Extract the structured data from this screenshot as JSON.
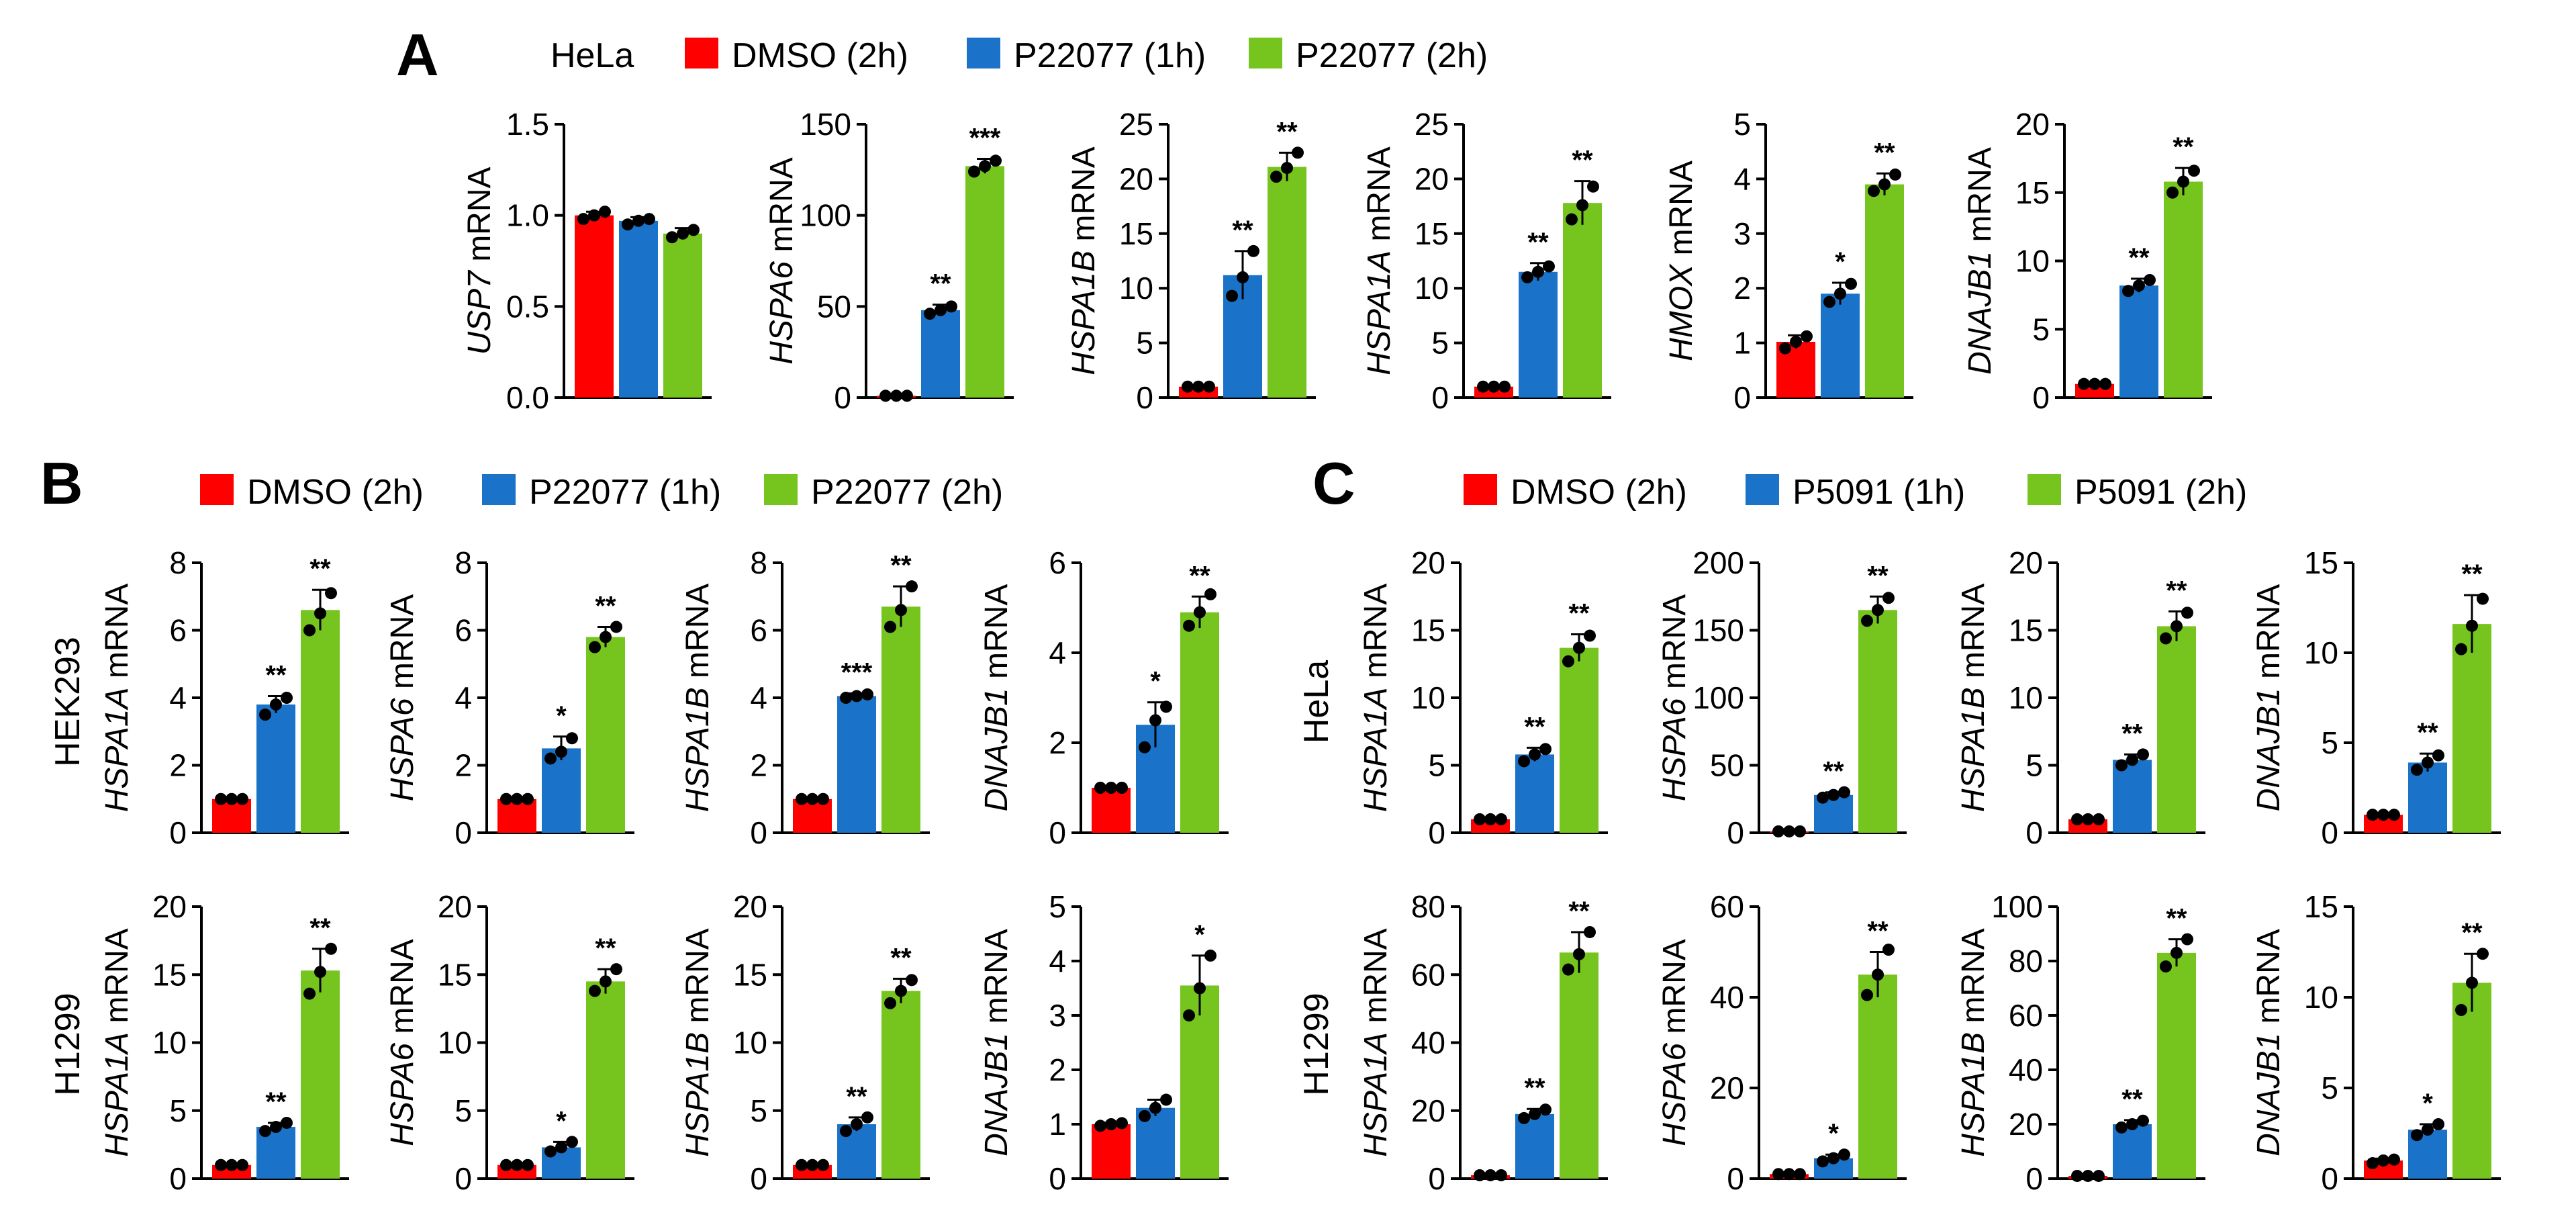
{
  "figure": {
    "panels": [
      {
        "letter": "A",
        "cell_label": "HeLa",
        "legend": [
          "DMSO (2h)",
          "P22077 (1h)",
          "P22077 (2h)"
        ]
      },
      {
        "letter": "B",
        "cell_label": "",
        "legend": [
          "DMSO (2h)",
          "P22077 (1h)",
          "P22077 (2h)"
        ],
        "row_labels": [
          "HEK293",
          "H1299"
        ]
      },
      {
        "letter": "C",
        "cell_label": "",
        "legend": [
          "DMSO (2h)",
          "P5091 (1h)",
          "P5091 (2h)"
        ],
        "row_labels": [
          "HeLa",
          "H1299"
        ]
      }
    ],
    "colors": {
      "dmso": "#ff0000",
      "drug_1h": "#1a73c8",
      "drug_2h": "#76c41e"
    },
    "units_suffix": " mRNA"
  },
  "chart_data": [
    {
      "type": "bar",
      "panel": "A",
      "gene": "USP7",
      "ylabel": "USP7 mRNA",
      "ylim": [
        0,
        1.5
      ],
      "yticks": [
        "0.0",
        "0.5",
        "1.0",
        "1.5"
      ],
      "categories": [
        "DMSO (2h)",
        "P22077 (1h)",
        "P22077 (2h)"
      ],
      "values": [
        1.0,
        0.97,
        0.9
      ],
      "errors": [
        0.02,
        0.02,
        0.03
      ],
      "points": [
        [
          0.98,
          1.0,
          1.02
        ],
        [
          0.95,
          0.97,
          0.98
        ],
        [
          0.88,
          0.9,
          0.92
        ]
      ],
      "significance": [
        "",
        "",
        ""
      ]
    },
    {
      "type": "bar",
      "panel": "A",
      "gene": "HSPA6",
      "ylabel": "HSPA6 mRNA",
      "ylim": [
        0,
        150
      ],
      "yticks": [
        "0",
        "50",
        "100",
        "150"
      ],
      "categories": [
        "DMSO (2h)",
        "P22077 (1h)",
        "P22077 (2h)"
      ],
      "values": [
        1,
        48,
        127
      ],
      "errors": [
        0.3,
        3,
        4
      ],
      "points": [
        [
          1,
          1,
          1
        ],
        [
          46,
          48,
          50
        ],
        [
          124,
          127,
          130
        ]
      ],
      "significance": [
        "",
        "**",
        "***"
      ]
    },
    {
      "type": "bar",
      "panel": "A",
      "gene": "HSPA1B",
      "ylabel": "HSPA1B mRNA",
      "ylim": [
        0,
        25
      ],
      "yticks": [
        "0",
        "5",
        "10",
        "15",
        "20",
        "25"
      ],
      "categories": [
        "DMSO (2h)",
        "P22077 (1h)",
        "P22077 (2h)"
      ],
      "values": [
        1,
        11.2,
        21.1
      ],
      "errors": [
        0.1,
        2.2,
        1.3
      ],
      "points": [
        [
          1,
          1,
          1
        ],
        [
          9.3,
          11,
          13.4
        ],
        [
          20.2,
          21,
          22.4
        ]
      ],
      "significance": [
        "",
        "**",
        "**"
      ]
    },
    {
      "type": "bar",
      "panel": "A",
      "gene": "HSPA1A",
      "ylabel": "HSPA1A mRNA",
      "ylim": [
        0,
        25
      ],
      "yticks": [
        "0",
        "5",
        "10",
        "15",
        "20",
        "25"
      ],
      "categories": [
        "DMSO (2h)",
        "P22077 (1h)",
        "P22077 (2h)"
      ],
      "values": [
        1,
        11.5,
        17.8
      ],
      "errors": [
        0.1,
        0.8,
        2
      ],
      "points": [
        [
          1,
          1,
          1
        ],
        [
          11,
          11.5,
          12
        ],
        [
          16.3,
          17.6,
          19.3
        ]
      ],
      "significance": [
        "",
        "**",
        "**"
      ]
    },
    {
      "type": "bar",
      "panel": "A",
      "gene": "HMOX",
      "ylabel": "HMOX mRNA",
      "ylim": [
        0,
        5
      ],
      "yticks": [
        "0",
        "1",
        "2",
        "3",
        "4",
        "5"
      ],
      "categories": [
        "DMSO (2h)",
        "P22077 (1h)",
        "P22077 (2h)"
      ],
      "values": [
        1.02,
        1.9,
        3.9
      ],
      "errors": [
        0.12,
        0.2,
        0.2
      ],
      "points": [
        [
          0.9,
          1.02,
          1.12
        ],
        [
          1.75,
          1.9,
          2.08
        ],
        [
          3.78,
          3.9,
          4.08
        ]
      ],
      "significance": [
        "",
        "*",
        "**"
      ]
    },
    {
      "type": "bar",
      "panel": "A",
      "gene": "DNAJB1",
      "ylabel": "DNAJB1 mRNA",
      "ylim": [
        0,
        20
      ],
      "yticks": [
        "0",
        "5",
        "10",
        "15",
        "20"
      ],
      "categories": [
        "DMSO (2h)",
        "P22077 (1h)",
        "P22077 (2h)"
      ],
      "values": [
        1,
        8.2,
        15.8
      ],
      "errors": [
        0.1,
        0.5,
        1
      ],
      "points": [
        [
          1,
          1,
          1
        ],
        [
          7.8,
          8.2,
          8.6
        ],
        [
          15,
          15.8,
          16.6
        ]
      ],
      "significance": [
        "",
        "**",
        "**"
      ]
    },
    {
      "type": "bar",
      "panel": "B",
      "row": "HEK293",
      "gene": "HSPA1A",
      "ylabel": "HSPA1A mRNA",
      "ylim": [
        0,
        8
      ],
      "yticks": [
        "0",
        "2",
        "4",
        "6",
        "8"
      ],
      "categories": [
        "DMSO (2h)",
        "P22077 (1h)",
        "P22077 (2h)"
      ],
      "values": [
        1,
        3.8,
        6.6
      ],
      "errors": [
        0.05,
        0.25,
        0.6
      ],
      "points": [
        [
          1,
          1,
          1
        ],
        [
          3.5,
          3.8,
          4.0
        ],
        [
          6.0,
          6.5,
          7.1
        ]
      ],
      "significance": [
        "",
        "**",
        "**"
      ]
    },
    {
      "type": "bar",
      "panel": "B",
      "row": "HEK293",
      "gene": "HSPA6",
      "ylabel": "HSPA6 mRNA",
      "ylim": [
        0,
        8
      ],
      "yticks": [
        "0",
        "2",
        "4",
        "6",
        "8"
      ],
      "categories": [
        "DMSO (2h)",
        "P22077 (1h)",
        "P22077 (2h)"
      ],
      "values": [
        1,
        2.5,
        5.8
      ],
      "errors": [
        0.05,
        0.35,
        0.3
      ],
      "points": [
        [
          1,
          1,
          1
        ],
        [
          2.2,
          2.4,
          2.8
        ],
        [
          5.5,
          5.8,
          6.1
        ]
      ],
      "significance": [
        "",
        "*",
        "**"
      ]
    },
    {
      "type": "bar",
      "panel": "B",
      "row": "HEK293",
      "gene": "HSPA1B",
      "ylabel": "HSPA1B mRNA",
      "ylim": [
        0,
        8
      ],
      "yticks": [
        "0",
        "2",
        "4",
        "6",
        "8"
      ],
      "categories": [
        "DMSO (2h)",
        "P22077 (1h)",
        "P22077 (2h)"
      ],
      "values": [
        1,
        4.05,
        6.7
      ],
      "errors": [
        0.05,
        0.08,
        0.6
      ],
      "points": [
        [
          1,
          1,
          1
        ],
        [
          4.0,
          4.05,
          4.1
        ],
        [
          6.1,
          6.6,
          7.3
        ]
      ],
      "significance": [
        "",
        "***",
        "**"
      ]
    },
    {
      "type": "bar",
      "panel": "B",
      "row": "HEK293",
      "gene": "DNAJB1",
      "ylabel": "DNAJB1 mRNA",
      "ylim": [
        0,
        6
      ],
      "yticks": [
        "0",
        "2",
        "4",
        "6"
      ],
      "categories": [
        "DMSO (2h)",
        "P22077 (1h)",
        "P22077 (2h)"
      ],
      "values": [
        1,
        2.4,
        4.9
      ],
      "errors": [
        0.04,
        0.5,
        0.35
      ],
      "points": [
        [
          1,
          1,
          1
        ],
        [
          1.9,
          2.5,
          2.8
        ],
        [
          4.6,
          4.9,
          5.3
        ]
      ],
      "significance": [
        "",
        "*",
        "**"
      ]
    },
    {
      "type": "bar",
      "panel": "B",
      "row": "H1299",
      "gene": "HSPA1A",
      "ylabel": "HSPA1A mRNA",
      "ylim": [
        0,
        20
      ],
      "yticks": [
        "0",
        "5",
        "10",
        "15",
        "20"
      ],
      "categories": [
        "DMSO (2h)",
        "P22077 (1h)",
        "P22077 (2h)"
      ],
      "values": [
        1,
        3.8,
        15.3
      ],
      "errors": [
        0.05,
        0.3,
        1.6
      ],
      "points": [
        [
          1,
          1,
          1
        ],
        [
          3.5,
          3.8,
          4.1
        ],
        [
          13.6,
          15.2,
          16.9
        ]
      ],
      "significance": [
        "",
        "**",
        "**"
      ]
    },
    {
      "type": "bar",
      "panel": "B",
      "row": "H1299",
      "gene": "HSPA6",
      "ylabel": "HSPA6 mRNA",
      "ylim": [
        0,
        20
      ],
      "yticks": [
        "0",
        "5",
        "10",
        "15",
        "20"
      ],
      "categories": [
        "DMSO (2h)",
        "P22077 (1h)",
        "P22077 (2h)"
      ],
      "values": [
        1,
        2.3,
        14.5
      ],
      "errors": [
        0.05,
        0.4,
        0.9
      ],
      "points": [
        [
          1,
          1,
          1
        ],
        [
          2.0,
          2.3,
          2.7
        ],
        [
          13.8,
          14.5,
          15.4
        ]
      ],
      "significance": [
        "",
        "*",
        "**"
      ]
    },
    {
      "type": "bar",
      "panel": "B",
      "row": "H1299",
      "gene": "HSPA1B",
      "ylabel": "HSPA1B mRNA",
      "ylim": [
        0,
        20
      ],
      "yticks": [
        "0",
        "5",
        "10",
        "15",
        "20"
      ],
      "categories": [
        "DMSO (2h)",
        "P22077 (1h)",
        "P22077 (2h)"
      ],
      "values": [
        1,
        4,
        13.8
      ],
      "errors": [
        0.05,
        0.5,
        0.9
      ],
      "points": [
        [
          1,
          1,
          1
        ],
        [
          3.5,
          4.0,
          4.5
        ],
        [
          12.9,
          13.8,
          14.6
        ]
      ],
      "significance": [
        "",
        "**",
        "**"
      ]
    },
    {
      "type": "bar",
      "panel": "B",
      "row": "H1299",
      "gene": "DNAJB1",
      "ylabel": "DNAJB1 mRNA",
      "ylim": [
        0,
        5
      ],
      "yticks": [
        "0",
        "1",
        "2",
        "3",
        "4",
        "5"
      ],
      "categories": [
        "DMSO (2h)",
        "P22077 (1h)",
        "P22077 (2h)"
      ],
      "values": [
        1,
        1.3,
        3.55
      ],
      "errors": [
        0.03,
        0.15,
        0.55
      ],
      "points": [
        [
          0.97,
          1,
          1.02
        ],
        [
          1.15,
          1.3,
          1.45
        ],
        [
          3.0,
          3.5,
          4.1
        ]
      ],
      "significance": [
        "",
        "",
        "*"
      ]
    },
    {
      "type": "bar",
      "panel": "C",
      "row": "HeLa",
      "gene": "HSPA1A",
      "ylabel": "HSPA1A mRNA",
      "ylim": [
        0,
        20
      ],
      "yticks": [
        "0",
        "5",
        "10",
        "15",
        "20"
      ],
      "categories": [
        "DMSO (2h)",
        "P5091 (1h)",
        "P5091 (2h)"
      ],
      "values": [
        1,
        5.8,
        13.7
      ],
      "errors": [
        0.1,
        0.5,
        1
      ],
      "points": [
        [
          1,
          1,
          1
        ],
        [
          5.3,
          5.8,
          6.2
        ],
        [
          12.7,
          13.7,
          14.6
        ]
      ],
      "significance": [
        "",
        "**",
        "**"
      ]
    },
    {
      "type": "bar",
      "panel": "C",
      "row": "HeLa",
      "gene": "HSPA6",
      "ylabel": "HSPA6 mRNA",
      "ylim": [
        0,
        200
      ],
      "yticks": [
        "0",
        "50",
        "100",
        "150",
        "200"
      ],
      "categories": [
        "DMSO (2h)",
        "P5091 (1h)",
        "P5091 (2h)"
      ],
      "values": [
        1,
        28,
        165
      ],
      "errors": [
        0.5,
        2,
        10
      ],
      "points": [
        [
          1,
          1,
          1
        ],
        [
          26,
          28,
          30
        ],
        [
          157,
          165,
          174
        ]
      ],
      "significance": [
        "",
        "**",
        "**"
      ]
    },
    {
      "type": "bar",
      "panel": "C",
      "row": "HeLa",
      "gene": "HSPA1B",
      "ylabel": "HSPA1B mRNA",
      "ylim": [
        0,
        20
      ],
      "yticks": [
        "0",
        "5",
        "10",
        "15",
        "20"
      ],
      "categories": [
        "DMSO (2h)",
        "P5091 (1h)",
        "P5091 (2h)"
      ],
      "values": [
        1,
        5.4,
        15.3
      ],
      "errors": [
        0.1,
        0.4,
        1.1
      ],
      "points": [
        [
          1,
          1,
          1
        ],
        [
          5.0,
          5.4,
          5.8
        ],
        [
          14.4,
          15.3,
          16.3
        ]
      ],
      "significance": [
        "",
        "**",
        "**"
      ]
    },
    {
      "type": "bar",
      "panel": "C",
      "row": "HeLa",
      "gene": "DNAJB1",
      "ylabel": "DNAJB1 mRNA",
      "ylim": [
        0,
        15
      ],
      "yticks": [
        "0",
        "5",
        "10",
        "15"
      ],
      "categories": [
        "DMSO (2h)",
        "P5091 (1h)",
        "P5091 (2h)"
      ],
      "values": [
        1,
        3.9,
        11.6
      ],
      "errors": [
        0.1,
        0.5,
        1.6
      ],
      "points": [
        [
          1,
          1,
          1
        ],
        [
          3.5,
          3.9,
          4.3
        ],
        [
          10.2,
          11.5,
          13.0
        ]
      ],
      "significance": [
        "",
        "**",
        "**"
      ]
    },
    {
      "type": "bar",
      "panel": "C",
      "row": "H1299",
      "gene": "HSPA1A",
      "ylabel": "HSPA1A mRNA",
      "ylim": [
        0,
        80
      ],
      "yticks": [
        "0",
        "20",
        "40",
        "60",
        "80"
      ],
      "categories": [
        "DMSO (2h)",
        "P5091 (1h)",
        "P5091 (2h)"
      ],
      "values": [
        1,
        19,
        66.5
      ],
      "errors": [
        0.2,
        1.5,
        6
      ],
      "points": [
        [
          1,
          1,
          1
        ],
        [
          17.8,
          19,
          20.3
        ],
        [
          61.5,
          66,
          72.5
        ]
      ],
      "significance": [
        "",
        "**",
        "**"
      ]
    },
    {
      "type": "bar",
      "panel": "C",
      "row": "H1299",
      "gene": "HSPA6",
      "ylabel": "HSPA6 mRNA",
      "ylim": [
        0,
        60
      ],
      "yticks": [
        "0",
        "20",
        "40",
        "60"
      ],
      "categories": [
        "DMSO (2h)",
        "P5091 (1h)",
        "P5091 (2h)"
      ],
      "values": [
        1,
        4.5,
        45
      ],
      "errors": [
        0.2,
        0.8,
        5
      ],
      "points": [
        [
          1,
          1,
          1
        ],
        [
          3.8,
          4.5,
          5.3
        ],
        [
          40.5,
          45,
          50.5
        ]
      ],
      "significance": [
        "",
        "*",
        "**"
      ]
    },
    {
      "type": "bar",
      "panel": "C",
      "row": "H1299",
      "gene": "HSPA1B",
      "ylabel": "HSPA1B mRNA",
      "ylim": [
        0,
        100
      ],
      "yticks": [
        "0",
        "20",
        "40",
        "60",
        "80",
        "100"
      ],
      "categories": [
        "DMSO (2h)",
        "P5091 (1h)",
        "P5091 (2h)"
      ],
      "values": [
        1,
        20,
        83
      ],
      "errors": [
        0.3,
        1.5,
        5
      ],
      "points": [
        [
          1,
          1,
          1
        ],
        [
          18.8,
          20,
          21.3
        ],
        [
          78,
          83,
          88
        ]
      ],
      "significance": [
        "",
        "**",
        "**"
      ]
    },
    {
      "type": "bar",
      "panel": "C",
      "row": "H1299",
      "gene": "DNAJB1",
      "ylabel": "DNAJB1 mRNA",
      "ylim": [
        0,
        15
      ],
      "yticks": [
        "0",
        "5",
        "10",
        "15"
      ],
      "categories": [
        "DMSO (2h)",
        "P5091 (1h)",
        "P5091 (2h)"
      ],
      "values": [
        1,
        2.7,
        10.8
      ],
      "errors": [
        0.1,
        0.3,
        1.6
      ],
      "points": [
        [
          0.85,
          1,
          1.05
        ],
        [
          2.4,
          2.7,
          3.0
        ],
        [
          9.3,
          10.8,
          12.4
        ]
      ],
      "significance": [
        "",
        "*",
        "**"
      ]
    }
  ]
}
